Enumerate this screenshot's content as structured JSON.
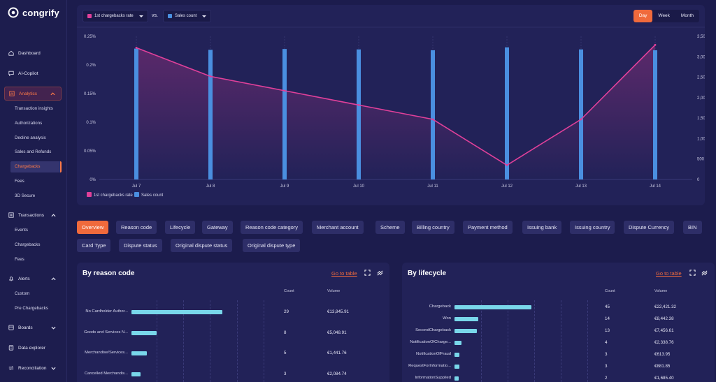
{
  "app": {
    "name": "congrify"
  },
  "sidebar": {
    "items": [
      {
        "label": "Dashboard",
        "icon": "home-icon"
      },
      {
        "label": "AI-Copilot",
        "icon": "chat-icon"
      },
      {
        "label": "Analytics",
        "icon": "chart-icon",
        "expanded": true
      },
      {
        "label": "Transactions",
        "icon": "transactions-icon",
        "expanded": true
      },
      {
        "label": "Alerts",
        "icon": "bell-icon",
        "expanded": true
      },
      {
        "label": "Boards",
        "icon": "boards-icon"
      },
      {
        "label": "Data explorer",
        "icon": "database-icon"
      },
      {
        "label": "Reconciliation",
        "icon": "arrows-icon"
      }
    ],
    "analytics_sub": [
      "Transaction insights",
      "Authorizations",
      "Decline analysis",
      "Sales and Refunds",
      "Chargebacks",
      "Fees",
      "3D Secure"
    ],
    "transactions_sub": [
      "Events",
      "Chargebacks",
      "Fees"
    ],
    "alerts_sub": [
      "Custom",
      "Pre Chargebacks"
    ]
  },
  "controls": {
    "metric1": "1st chargebacks rate",
    "vs": "vs.",
    "metric2": "Sales count",
    "periods": [
      "Day",
      "Week",
      "Month"
    ],
    "active_period": "Day"
  },
  "colors": {
    "accent": "#f06a3c",
    "line": "#e0409a",
    "bars": "#4a8fe0",
    "table_bars": "#79d7ea"
  },
  "chart_data": {
    "type": "bar+line",
    "categories": [
      "Jul 7",
      "Jul 8",
      "Jul 9",
      "Jul 10",
      "Jul 11",
      "Jul 12",
      "Jul 13",
      "Jul 14"
    ],
    "series": [
      {
        "name": "1st chargebacks rate",
        "type": "line",
        "axis": "left",
        "values": [
          0.23,
          0.18,
          0.155,
          0.13,
          0.105,
          0.025,
          0.105,
          0.235
        ]
      },
      {
        "name": "Sales count",
        "type": "bar",
        "axis": "right",
        "values": [
          3200,
          3170,
          3190,
          3180,
          3160,
          3230,
          3180,
          3160
        ]
      }
    ],
    "y_left_ticks": [
      "0%",
      "0.05%",
      "0.1%",
      "0.15%",
      "0.2%",
      "0.25%"
    ],
    "y_left_range": [
      0,
      0.25
    ],
    "y_right_ticks": [
      "0",
      "500",
      "1,000",
      "1,500",
      "2,000",
      "2,500",
      "3,000",
      "3,500"
    ],
    "y_right_range": [
      0,
      3500
    ],
    "legend": [
      "1st chargebacks rate",
      "Sales count"
    ]
  },
  "filters": [
    "Overview",
    "Reason code",
    "Lifecycle",
    "Gateway",
    "Reason code category",
    "Merchant account",
    "Scheme",
    "Billing country",
    "Payment method",
    "Issuing bank",
    "Issuing country",
    "Dispute Currency",
    "BIN",
    "Card Type",
    "Dispute status",
    "Original dispute status",
    "Original dispute type"
  ],
  "by_reason": {
    "title": "By reason code",
    "goto": "Go to table",
    "col_count": "Count",
    "col_volume": "Volume",
    "rows": [
      {
        "label": "No Cardholder Author...",
        "count": "29",
        "volume": "€13,845.91",
        "bar": 29
      },
      {
        "label": "Goods and Services N...",
        "count": "8",
        "volume": "€5,048.91",
        "bar": 8
      },
      {
        "label": "Merchandise/Services...",
        "count": "5",
        "volume": "€1,441.76",
        "bar": 5
      },
      {
        "label": "Cancelled Merchandis...",
        "count": "3",
        "volume": "€2,084.74",
        "bar": 3
      }
    ]
  },
  "by_lifecycle": {
    "title": "By lifecycle",
    "goto": "Go to table",
    "col_count": "Count",
    "col_volume": "Volume",
    "rows": [
      {
        "label": "Chargeback",
        "count": "45",
        "volume": "€22,421.32",
        "bar": 45
      },
      {
        "label": "Won",
        "count": "14",
        "volume": "€8,442.38",
        "bar": 14
      },
      {
        "label": "SecondChargeback",
        "count": "13",
        "volume": "€7,456.61",
        "bar": 13
      },
      {
        "label": "NotificationOfCharge...",
        "count": "4",
        "volume": "€2,338.76",
        "bar": 4
      },
      {
        "label": "NotificationOfFraud",
        "count": "3",
        "volume": "€613.95",
        "bar": 3
      },
      {
        "label": "RequestForInformatio...",
        "count": "3",
        "volume": "€881.85",
        "bar": 3
      },
      {
        "label": "InformationSupplied",
        "count": "2",
        "volume": "€1,685.40",
        "bar": 2
      }
    ]
  }
}
